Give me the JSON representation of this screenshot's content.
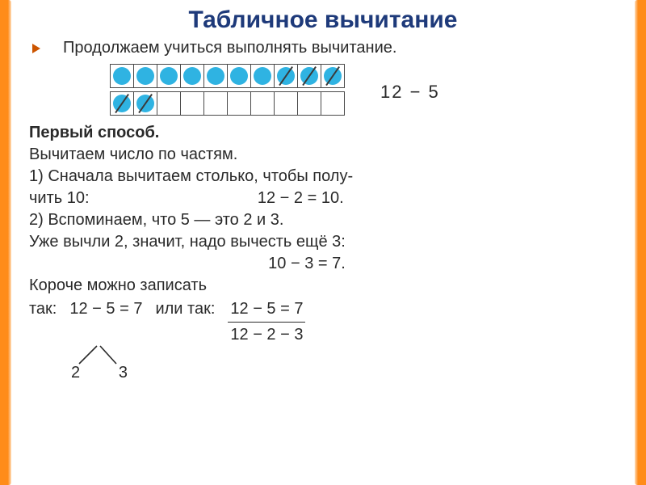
{
  "title": {
    "text": "Табличное вычитание",
    "color": "#1e3a7a"
  },
  "bullet": {
    "color": "#cc5500",
    "text": "Продолжаем учиться выполнять вычитание."
  },
  "diagram": {
    "dot_color": "#2fb3e2",
    "row1": [
      {
        "filled": true,
        "crossed": false
      },
      {
        "filled": true,
        "crossed": false
      },
      {
        "filled": true,
        "crossed": false
      },
      {
        "filled": true,
        "crossed": false
      },
      {
        "filled": true,
        "crossed": false
      },
      {
        "filled": true,
        "crossed": false
      },
      {
        "filled": true,
        "crossed": false
      },
      {
        "filled": true,
        "crossed": true
      },
      {
        "filled": true,
        "crossed": true
      },
      {
        "filled": true,
        "crossed": true
      }
    ],
    "row2": [
      {
        "filled": true,
        "crossed": true
      },
      {
        "filled": true,
        "crossed": true
      },
      {
        "filled": false,
        "crossed": false
      },
      {
        "filled": false,
        "crossed": false
      },
      {
        "filled": false,
        "crossed": false
      },
      {
        "filled": false,
        "crossed": false
      },
      {
        "filled": false,
        "crossed": false
      },
      {
        "filled": false,
        "crossed": false
      },
      {
        "filled": false,
        "crossed": false
      },
      {
        "filled": false,
        "crossed": false
      }
    ],
    "expression": "12 − 5"
  },
  "method": {
    "heading": "Первый способ.",
    "intro": "Вычитаем число по частям.",
    "step1_a": "1) Сначала вычитаем столько, чтобы полу-",
    "step1_b": "чить 10:",
    "step1_eq": "12 − 2 = 10.",
    "step2_a": "2) Вспоминаем, что 5 — это 2 и 3.",
    "step2_b": "Уже вычли 2, значит, надо вычесть ещё 3:",
    "step2_eq": "10 − 3 = 7.",
    "short_a": "Короче можно записать",
    "short_b": "так:",
    "short_eq1": "12 − 5 = 7",
    "short_or": "или так:",
    "frac_top": "12 − 5 = 7",
    "frac_bot": "12 − 2 − 3",
    "split_left": "2",
    "split_right": "3"
  }
}
